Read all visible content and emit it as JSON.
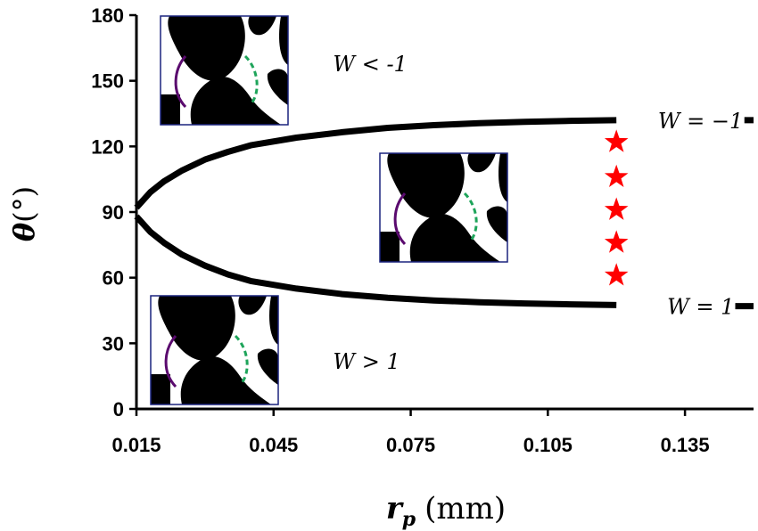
{
  "chart_data": {
    "type": "line",
    "xlabel": "r_p (mm)",
    "xlabel_main": "r",
    "xlabel_sub": "p",
    "xlabel_unit": "(mm)",
    "ylabel": "θ(°)",
    "ylabel_main": "θ",
    "ylabel_unit": "(°)",
    "xlim": [
      0.015,
      0.15
    ],
    "ylim": [
      0,
      180
    ],
    "x_ticks": [
      "0.015",
      "0.045",
      "0.075",
      "0.105",
      "0.135"
    ],
    "x_tick_values": [
      0.015,
      0.045,
      0.075,
      0.105,
      0.135
    ],
    "y_ticks": [
      "0",
      "30",
      "60",
      "90",
      "120",
      "150",
      "180"
    ],
    "y_tick_values": [
      0,
      30,
      60,
      90,
      120,
      150,
      180
    ],
    "series": [
      {
        "name": "W = −1",
        "color": "#000000",
        "x": [
          0.015,
          0.018,
          0.021,
          0.025,
          0.03,
          0.035,
          0.04,
          0.05,
          0.06,
          0.07,
          0.08,
          0.09,
          0.1,
          0.11,
          0.12
        ],
        "y": [
          92,
          99,
          104,
          109,
          114,
          117.5,
          120.5,
          124,
          126.5,
          128.5,
          129.7,
          130.6,
          131.2,
          131.7,
          132
        ]
      },
      {
        "name": "W = 1",
        "color": "#000000",
        "x": [
          0.015,
          0.018,
          0.021,
          0.025,
          0.03,
          0.035,
          0.04,
          0.05,
          0.06,
          0.07,
          0.08,
          0.09,
          0.1,
          0.11,
          0.12
        ],
        "y": [
          88,
          81,
          76,
          70.5,
          65.5,
          61.5,
          58.5,
          55,
          52.5,
          50.8,
          49.6,
          48.8,
          48.2,
          47.8,
          47.5
        ]
      }
    ],
    "stars": {
      "color": "#ff0000",
      "x": 0.12,
      "y": [
        122,
        106,
        91,
        76,
        61
      ]
    },
    "line_labels": [
      {
        "text": "W = −1",
        "x": 0.133,
        "y": 132
      },
      {
        "text": "W = 1",
        "x": 0.135,
        "y": 47
      }
    ],
    "region_labels": [
      {
        "text": "W < -1",
        "x": 0.058,
        "y": 158
      },
      {
        "text": "W > 1",
        "x": 0.058,
        "y": 22
      }
    ]
  }
}
